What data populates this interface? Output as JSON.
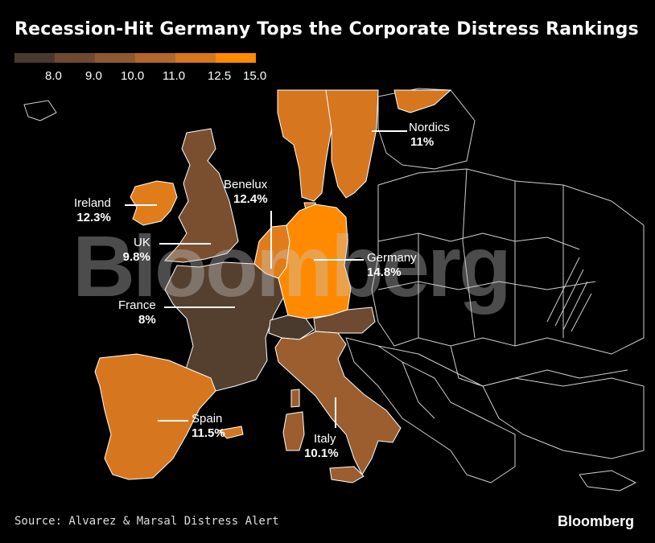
{
  "title": "Recession-Hit Germany Tops the Corporate Distress Rankings",
  "legend": {
    "ticks": [
      "8.0",
      "9.0",
      "10.0",
      "11.0",
      "12.5",
      "15.0"
    ],
    "colors": [
      "#4a3a2e",
      "#6e4a32",
      "#8f5a31",
      "#b2682a",
      "#d6771f",
      "#ff8a00"
    ]
  },
  "regions": [
    {
      "name": "Nordics",
      "value": "11%",
      "color": "#d6771f"
    },
    {
      "name": "Benelux",
      "value": "12.4%",
      "color": "#e07d1a"
    },
    {
      "name": "Ireland",
      "value": "12.3%",
      "color": "#e07d1a"
    },
    {
      "name": "UK",
      "value": "9.8%",
      "color": "#7a4f30"
    },
    {
      "name": "Germany",
      "value": "14.8%",
      "color": "#ff8a00"
    },
    {
      "name": "France",
      "value": "8%",
      "color": "#55402f"
    },
    {
      "name": "Spain",
      "value": "11.5%",
      "color": "#d6771f"
    },
    {
      "name": "Italy",
      "value": "10.1%",
      "color": "#9c5e2f"
    }
  ],
  "watermark": "Bloomberg",
  "source": "Source: Alvarez & Marsal Distress Alert",
  "logo": "Bloomberg"
}
